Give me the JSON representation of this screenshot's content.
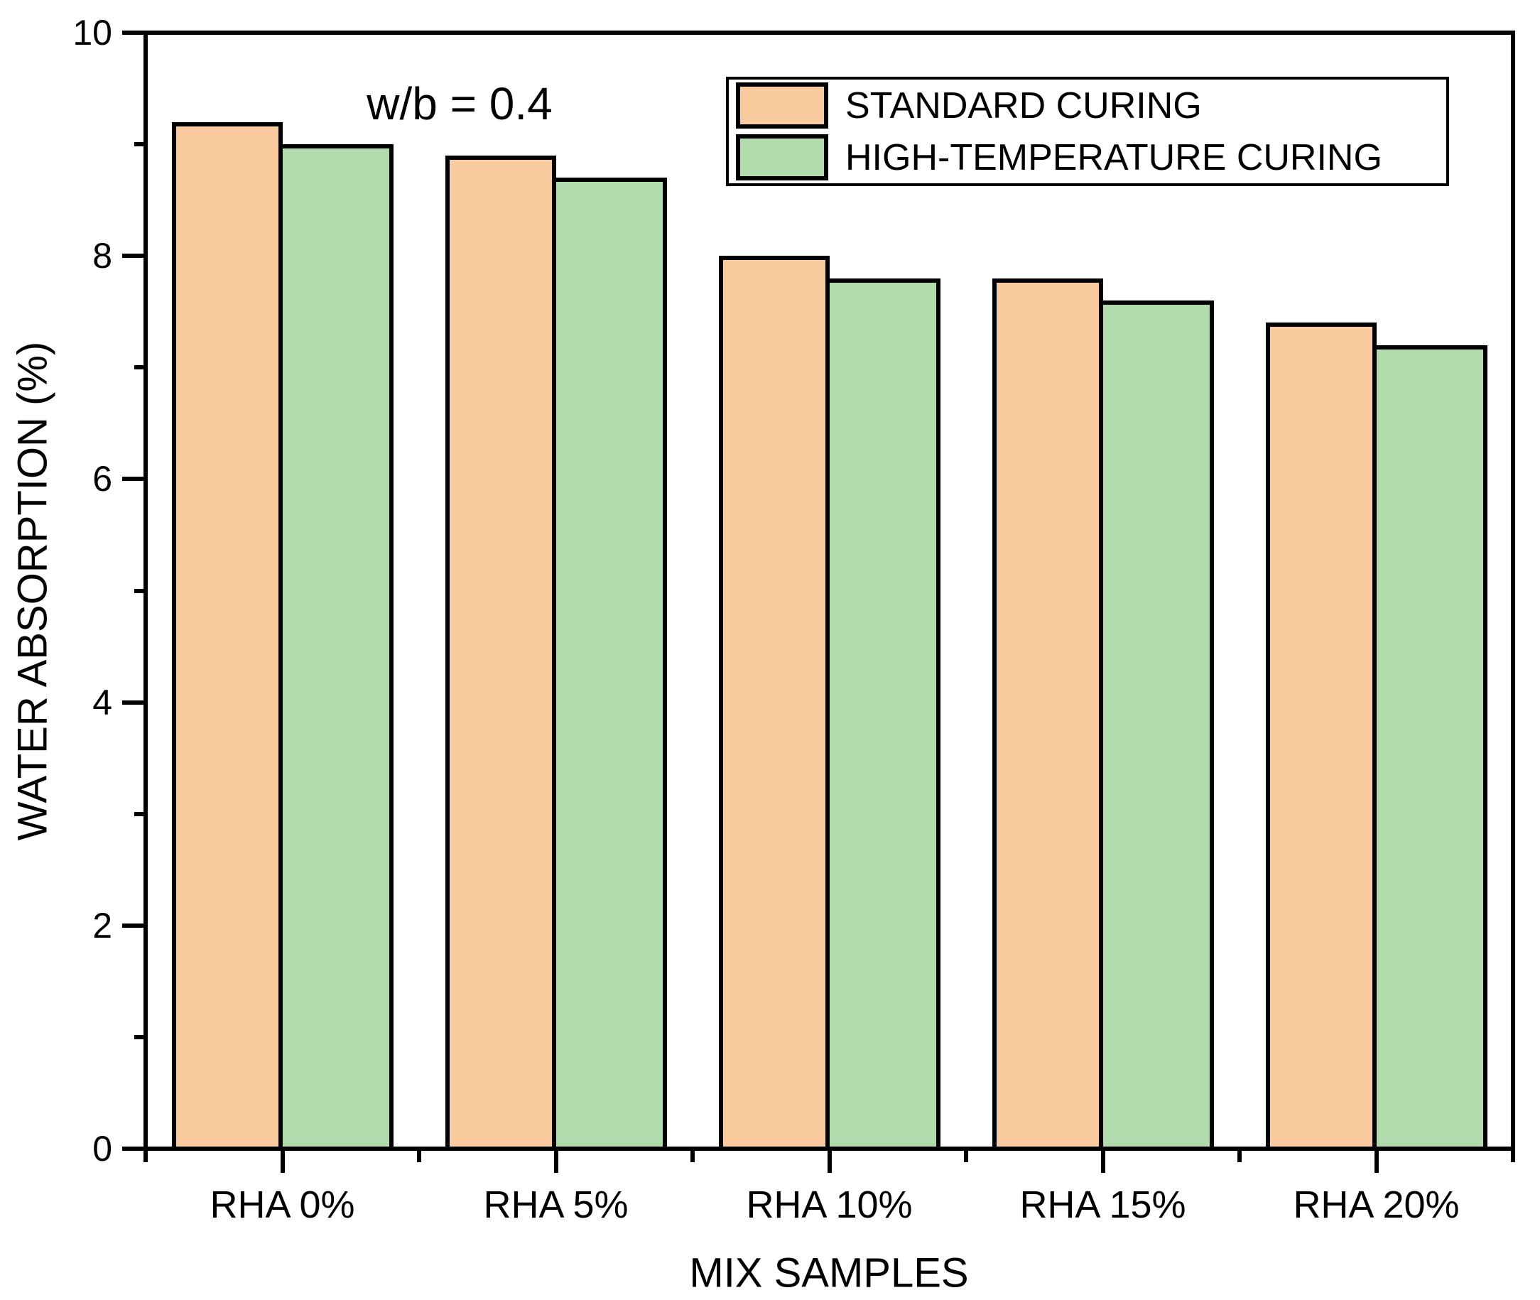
{
  "figure": {
    "background_color": "#ffffff",
    "axis_color": "#000000"
  },
  "chart_data": {
    "type": "bar",
    "title": "",
    "annotation": "w/b = 0.4",
    "xlabel": "MIX SAMPLES",
    "ylabel": "WATER ABSORPTION (%)",
    "categories": [
      "RHA 0%",
      "RHA 5%",
      "RHA 10%",
      "RHA 15%",
      "RHA 20%"
    ],
    "series": [
      {
        "name": "STANDARD CURING",
        "color": "#FACB9E",
        "values": [
          9.2,
          8.9,
          8.0,
          7.8,
          7.4
        ]
      },
      {
        "name": "HIGH-TEMPERATURE CURING",
        "color": "#B1DBAD",
        "values": [
          9.0,
          8.7,
          7.8,
          7.6,
          7.2
        ]
      }
    ],
    "ylim": [
      0,
      10
    ],
    "y_major_ticks": [
      0,
      2,
      4,
      6,
      8,
      10
    ],
    "y_minor_ticks": [
      1,
      3,
      5,
      7,
      9
    ],
    "bar_outline_color": "#000000",
    "grid": false,
    "legend_position": "top-right"
  }
}
